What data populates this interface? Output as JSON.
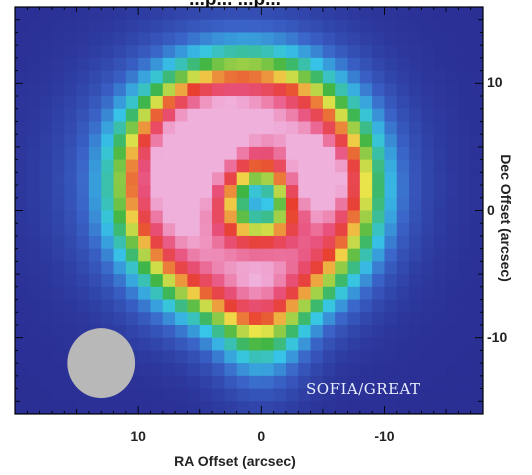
{
  "chart_data": {
    "type": "heatmap",
    "title": "",
    "title_partial": "...p... ...p...",
    "xlabel": "RA Offset (arcsec)",
    "ylabel": "Dec Offset (arcsec)",
    "xlim": [
      20,
      -18
    ],
    "ylim": [
      -16,
      16
    ],
    "x_ticks": [
      10,
      0,
      -10
    ],
    "y_ticks": [
      10,
      0,
      -10
    ],
    "instrument_label": "SOFIA/GREAT",
    "beam": {
      "ra": 13,
      "dec": -12,
      "diameter_arcsec": 5.5
    },
    "colormap": "rainbow",
    "colors": [
      "#2a2f94",
      "#3a63c8",
      "#37c6e8",
      "#3fb544",
      "#f0e64a",
      "#e83f2f",
      "#e8507a",
      "#f0b0dc"
    ],
    "emission_components": [
      {
        "name": "shell",
        "ra": 2,
        "dec": 2.5,
        "sigma_ra": 7.0,
        "sigma_dec": 6.2,
        "peak": 0.55
      },
      {
        "name": "ring",
        "ra": 1,
        "dec": 1.5,
        "radius": 6.5,
        "width": 3.0,
        "peak": 0.6
      },
      {
        "name": "east-knot",
        "ra": 5,
        "dec": 4,
        "sigma": 3.2,
        "peak": 0.25
      },
      {
        "name": "west-peak",
        "ra": -4.5,
        "dec": 2.5,
        "sigma": 1.8,
        "peak": 0.35
      },
      {
        "name": "central-dip",
        "ra": 0,
        "dec": 0.5,
        "sigma": 2.0,
        "peak": -0.45
      },
      {
        "name": "southern-extension",
        "ra": 0,
        "dec": -9,
        "sigma_ra": 2.5,
        "sigma_dec": 3.5,
        "peak": 0.3
      }
    ]
  }
}
